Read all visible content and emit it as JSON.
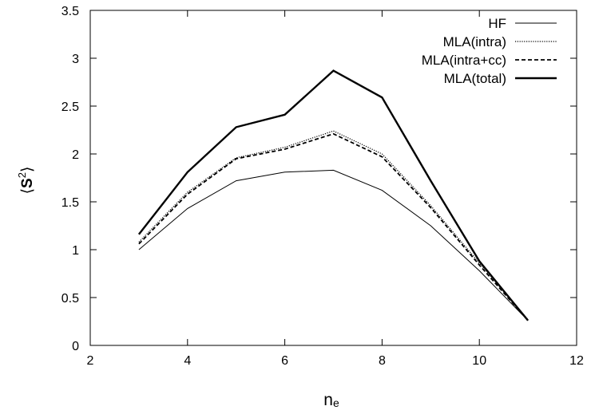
{
  "chart_data": {
    "type": "line",
    "title": "",
    "xlabel": "n",
    "xlabel_sub": "e",
    "ylabel_open": "⟨",
    "ylabel_var": "S",
    "ylabel_sup": "2",
    "ylabel_close": "⟩",
    "xlim": [
      2,
      12
    ],
    "ylim": [
      0,
      3.5
    ],
    "xticks": [
      2,
      4,
      6,
      8,
      10,
      12
    ],
    "yticks": [
      0,
      0.5,
      1,
      1.5,
      2,
      2.5,
      3,
      3.5
    ],
    "grid": false,
    "legend_position": "top-right",
    "x": [
      3,
      4,
      5,
      6,
      7,
      8,
      9,
      10,
      11
    ],
    "series": [
      {
        "name": "HF",
        "style": "thin-solid",
        "values": [
          1.0,
          1.43,
          1.72,
          1.81,
          1.83,
          1.62,
          1.25,
          0.78,
          0.26
        ]
      },
      {
        "name": "MLA(intra)",
        "style": "dotted",
        "values": [
          1.08,
          1.6,
          1.96,
          2.07,
          2.24,
          2.0,
          1.46,
          0.86,
          0.27
        ]
      },
      {
        "name": "MLA(intra+cc)",
        "style": "dashed",
        "values": [
          1.06,
          1.58,
          1.95,
          2.05,
          2.21,
          1.97,
          1.44,
          0.84,
          0.26
        ]
      },
      {
        "name": "MLA(total)",
        "style": "thick-solid",
        "values": [
          1.16,
          1.81,
          2.28,
          2.41,
          2.87,
          2.59,
          1.72,
          0.88,
          0.26
        ]
      }
    ]
  }
}
